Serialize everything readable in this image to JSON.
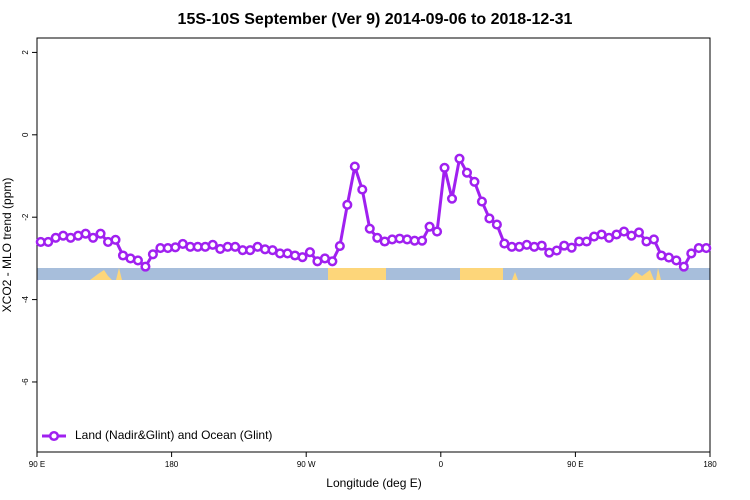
{
  "chart_data": {
    "type": "line",
    "title": "15S-10S September (Ver 9)   2014-09-06 to 2018-12-31",
    "x_label": "Longitude (deg E)",
    "y_label": "XCO2 - MLO trend (ppm)",
    "xlim": [
      90,
      540
    ],
    "xticks": [
      {
        "value": 90,
        "label": "90 E"
      },
      180,
      {
        "value": 270,
        "label": "90 W"
      },
      {
        "value": 360,
        "label": "0"
      },
      {
        "value": 450,
        "label": "90 E"
      },
      {
        "value": 540,
        "label": "180"
      }
    ],
    "ylim": [
      -7.7,
      2.35
    ],
    "yticks": [
      -6,
      -4,
      -2,
      0,
      2
    ],
    "legend": "bottom-left",
    "x": [
      92.5,
      97.5,
      102.5,
      107.5,
      112.5,
      117.5,
      122.5,
      127.5,
      132.5,
      137.5,
      142.5,
      147.5,
      152.5,
      157.5,
      162.5,
      167.5,
      172.5,
      177.5,
      182.5,
      187.5,
      192.5,
      197.5,
      202.5,
      207.5,
      212.5,
      217.5,
      222.5,
      227.5,
      232.5,
      237.5,
      242.5,
      247.5,
      252.5,
      257.5,
      262.5,
      267.5,
      272.5,
      277.5,
      282.5,
      287.5,
      292.5,
      297.5,
      302.5,
      307.5,
      312.5,
      317.5,
      322.5,
      327.5,
      332.5,
      337.5,
      342.5,
      347.5,
      352.5,
      357.5,
      362.5,
      367.5,
      372.5,
      377.5,
      382.5,
      387.5,
      392.5,
      397.5,
      402.5,
      407.5,
      412.5,
      417.5,
      422.5,
      427.5,
      432.5,
      437.5,
      442.5,
      447.5,
      452.5,
      457.5,
      462.5,
      467.5,
      472.5,
      477.5,
      482.5,
      487.5,
      492.5,
      497.5,
      502.5,
      507.5,
      512.5,
      517.5,
      522.5,
      527.5,
      532.5,
      537.5
    ],
    "series": [
      {
        "name": "Land (Nadir&Glint) and Ocean (Glint)",
        "color": "#a020f0",
        "values": [
          -2.6,
          -2.6,
          -2.5,
          -2.45,
          -2.5,
          -2.45,
          -2.4,
          -2.5,
          -2.4,
          -2.6,
          -2.55,
          -2.93,
          -3.0,
          -3.05,
          -3.2,
          -2.9,
          -2.75,
          -2.75,
          -2.73,
          -2.65,
          -2.72,
          -2.72,
          -2.72,
          -2.67,
          -2.77,
          -2.72,
          -2.72,
          -2.8,
          -2.8,
          -2.72,
          -2.78,
          -2.8,
          -2.88,
          -2.88,
          -2.93,
          -2.97,
          -2.85,
          -3.07,
          -3.0,
          -3.07,
          -2.7,
          -1.7,
          -0.77,
          -1.33,
          -2.28,
          -2.5,
          -2.59,
          -2.54,
          -2.52,
          -2.54,
          -2.57,
          -2.57,
          -2.23,
          -2.35,
          -0.8,
          -1.55,
          -0.58,
          -0.92,
          -1.14,
          -1.62,
          -2.03,
          -2.18,
          -2.64,
          -2.72,
          -2.72,
          -2.67,
          -2.72,
          -2.69,
          -2.86,
          -2.81,
          -2.69,
          -2.74,
          -2.59,
          -2.59,
          -2.47,
          -2.42,
          -2.5,
          -2.42,
          -2.35,
          -2.45,
          -2.37,
          -2.59,
          -2.54,
          -2.93,
          -2.98,
          -3.05,
          -3.2,
          -2.88,
          -2.75,
          -2.75
        ]
      }
    ]
  }
}
